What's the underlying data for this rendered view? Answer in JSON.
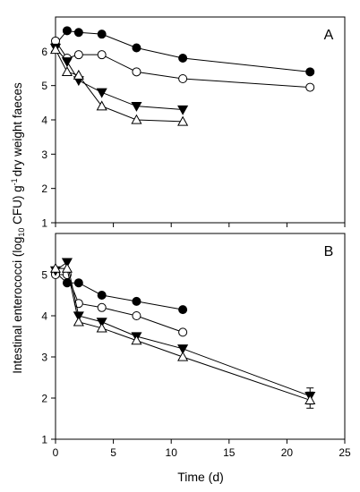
{
  "figure": {
    "ylabel_main": "Intestinal enterococci (log",
    "ylabel_sub": "10",
    "ylabel_cfu": " CFU) g",
    "ylabel_sup": "-1",
    "ylabel_tail": "dry weight faeces",
    "xlabel": "Time (d)"
  },
  "chart_data": [
    {
      "panel": "A",
      "type": "line",
      "ylim": [
        1,
        7
      ],
      "yticks": [
        1,
        2,
        3,
        4,
        5,
        6
      ],
      "xlim": [
        0,
        25
      ],
      "xticks": [],
      "grid": false,
      "series": [
        {
          "marker": "filled-circle",
          "x": [
            0,
            1,
            2,
            4,
            7,
            11,
            22
          ],
          "y": [
            6.2,
            6.6,
            6.55,
            6.5,
            6.1,
            5.8,
            5.4
          ]
        },
        {
          "marker": "open-circle",
          "x": [
            0,
            1,
            2,
            4,
            7,
            11,
            22
          ],
          "y": [
            6.3,
            5.8,
            5.9,
            5.9,
            5.4,
            5.2,
            4.95
          ]
        },
        {
          "marker": "filled-triangle-down",
          "x": [
            0,
            1,
            2,
            4,
            7,
            11
          ],
          "y": [
            6.1,
            5.7,
            5.15,
            4.8,
            4.4,
            4.3
          ]
        },
        {
          "marker": "open-triangle-up",
          "x": [
            0,
            1,
            2,
            4,
            7,
            11
          ],
          "y": [
            6.05,
            5.4,
            5.3,
            4.4,
            4.0,
            3.95
          ]
        }
      ]
    },
    {
      "panel": "B",
      "type": "line",
      "ylim": [
        1,
        6
      ],
      "yticks": [
        1,
        2,
        3,
        4,
        5
      ],
      "xlim": [
        0,
        25
      ],
      "xticks": [
        0,
        5,
        10,
        15,
        20,
        25
      ],
      "grid": false,
      "series": [
        {
          "marker": "filled-circle",
          "x": [
            0,
            1,
            2,
            4,
            7,
            11
          ],
          "y": [
            5.05,
            4.8,
            4.8,
            4.5,
            4.35,
            4.15
          ]
        },
        {
          "marker": "open-circle",
          "x": [
            0,
            1,
            2,
            4,
            7,
            11
          ],
          "y": [
            5.0,
            5.0,
            4.3,
            4.2,
            4.0,
            3.6
          ]
        },
        {
          "marker": "filled-triangle-down",
          "x": [
            0,
            1,
            2,
            4,
            7,
            11,
            22
          ],
          "y": [
            5.1,
            5.3,
            4.0,
            3.85,
            3.5,
            3.2,
            2.05
          ]
        },
        {
          "marker": "open-triangle-up",
          "x": [
            0,
            1,
            2,
            4,
            7,
            11,
            22
          ],
          "y": [
            5.15,
            5.15,
            3.85,
            3.7,
            3.4,
            3.0,
            1.95
          ]
        }
      ]
    }
  ]
}
